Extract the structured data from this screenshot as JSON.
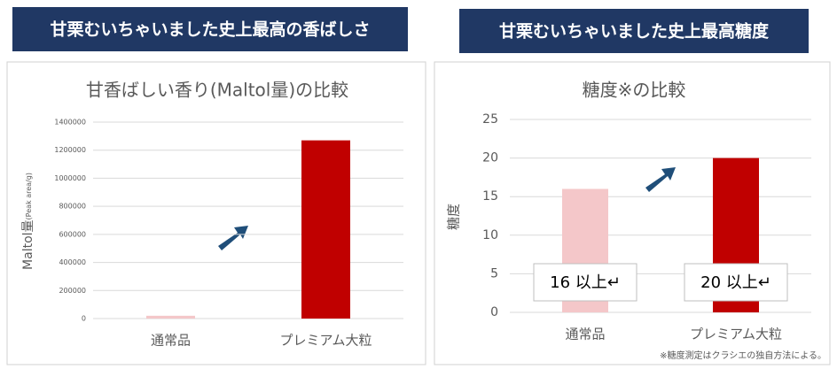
{
  "chart_data": [
    {
      "type": "bar",
      "banner": "甘栗むいちゃいました史上最高の香ばしさ",
      "title": "甘香ばしい香り(Maltol量)の比較",
      "y_label": "Maltol量",
      "y_label_unit": "(Peak area/g)",
      "categories": [
        "通常品",
        "プレミアム大粒"
      ],
      "values": [
        20000,
        1270000
      ],
      "colors": [
        "#f4c7c9",
        "#c00000"
      ],
      "ylim": [
        0,
        1400000
      ],
      "yticks": [
        0,
        200000,
        400000,
        600000,
        800000,
        1000000,
        1200000,
        1400000
      ],
      "grid": true
    },
    {
      "type": "bar",
      "banner": "甘栗むいちゃいました史上最高糖度",
      "title": "糖度※の比較",
      "y_label": "糖度",
      "categories": [
        "通常品",
        "プレミアム大粒"
      ],
      "values": [
        16,
        20
      ],
      "value_labels": [
        "16 以上↵",
        "20 以上↵"
      ],
      "colors": [
        "#f4c7c9",
        "#c00000"
      ],
      "ylim": [
        0,
        25
      ],
      "yticks": [
        0,
        5,
        10,
        15,
        20,
        25
      ],
      "grid": true,
      "note": "※糖度測定はクラシエの独自方法による。"
    }
  ]
}
